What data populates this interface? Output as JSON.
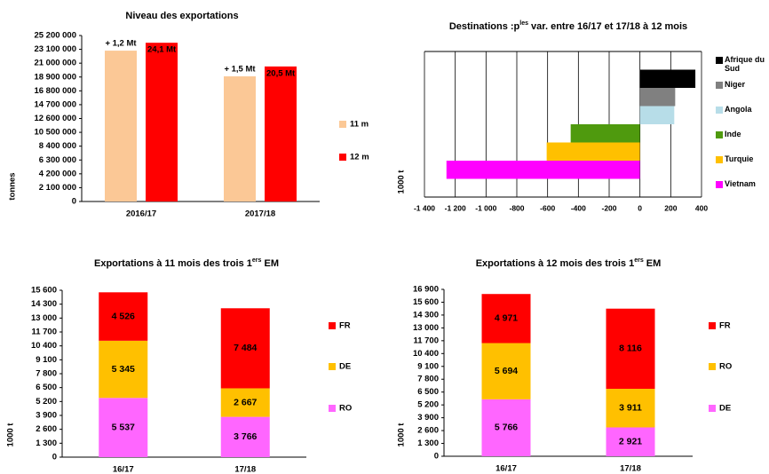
{
  "chart_data": [
    {
      "type": "bar",
      "title": [
        "Niveau des exportations"
      ],
      "ylabel": "tonnes",
      "categories": [
        "2016/17",
        "2017/18"
      ],
      "series": [
        {
          "name": "11 m",
          "color": "#fbc896",
          "values": [
            22900000,
            19000000
          ]
        },
        {
          "name": "12 m",
          "color": "#ff0000",
          "values": [
            24100000,
            20500000
          ],
          "value_labels": [
            "24,1 Mt",
            "20,5 Mt"
          ]
        }
      ],
      "annotations": [
        "+ 1,2 Mt",
        "+ 1,5 Mt"
      ],
      "ylim": [
        0,
        25200000
      ],
      "yticks": [
        0,
        {
          "value": 2100000,
          "label": "2 100 000"
        },
        {
          "value": 4200000,
          "label": "4 200 000"
        },
        {
          "value": 6300000,
          "label": "6 300 000"
        },
        {
          "value": 8400000,
          "label": "8 400 000"
        },
        {
          "value": 10500000,
          "label": "10 500 000"
        },
        {
          "value": 12600000,
          "label": "12 600 000"
        },
        {
          "value": 14700000,
          "label": "14 700 000"
        },
        {
          "value": 16800000,
          "label": "16 800 000"
        },
        {
          "value": 18900000,
          "label": "18 900 000"
        },
        {
          "value": 21000000,
          "label": "21 000 000"
        },
        {
          "value": 23100000,
          "label": "23 100 000"
        },
        {
          "value": 25200000,
          "label": "25 200 000"
        }
      ],
      "grid": false
    },
    {
      "type": "barh",
      "title": [
        "Destinations :p",
        "les",
        " var. entre 16/17 et 17/18 à 12 mois"
      ],
      "ylabel": "1000 t",
      "categories": [
        "Afrique du Sud",
        "Niger",
        "Angola",
        "Inde",
        "Turquie",
        "Vietnam"
      ],
      "values": [
        360,
        229,
        223,
        -450,
        -606,
        -1257
      ],
      "colors": [
        "#000000",
        "#808080",
        "#b7dde8",
        "#4f9a0e",
        "#ffc000",
        "#ff00ff"
      ],
      "xlim": [
        -1400,
        400
      ],
      "xticks": [
        {
          "value": -1400,
          "label": "-1 400"
        },
        {
          "value": -1200,
          "label": "-1 200"
        },
        {
          "value": -1000,
          "label": "-1 000"
        },
        -800,
        -600,
        -400,
        -200,
        0,
        200,
        400
      ],
      "grid": true
    },
    {
      "type": "stacked",
      "title": [
        "Exportations à 11 mois des trois 1",
        "ers",
        " EM"
      ],
      "ylabel": "1000 t",
      "categories": [
        "16/17",
        "17/18"
      ],
      "series": [
        {
          "name": "RO",
          "color": "#ff66ff",
          "values": [
            5537,
            3766
          ],
          "value_labels": [
            "5 537",
            "3 766"
          ]
        },
        {
          "name": "DE",
          "color": "#ffc000",
          "values": [
            5345,
            2667
          ],
          "value_labels": [
            "5 345",
            "2 667"
          ]
        },
        {
          "name": "FR",
          "color": "#ff0000",
          "values": [
            4526,
            7484
          ],
          "value_labels": [
            "4 526",
            "7 484"
          ]
        }
      ],
      "ylim": [
        0,
        15600
      ],
      "yticks": [
        0,
        {
          "value": 1300,
          "label": "1 300"
        },
        {
          "value": 2600,
          "label": "2 600"
        },
        {
          "value": 3900,
          "label": "3 900"
        },
        {
          "value": 5200,
          "label": "5 200"
        },
        {
          "value": 6500,
          "label": "6 500"
        },
        {
          "value": 7800,
          "label": "7 800"
        },
        {
          "value": 9100,
          "label": "9 100"
        },
        {
          "value": 10400,
          "label": "10 400"
        },
        {
          "value": 11700,
          "label": "11 700"
        },
        {
          "value": 13000,
          "label": "13 000"
        },
        {
          "value": 14300,
          "label": "14 300"
        },
        {
          "value": 15600,
          "label": "15 600"
        }
      ],
      "grid": false
    },
    {
      "type": "stacked",
      "title": [
        "Exportations à 12 mois des trois 1",
        "ers",
        " EM"
      ],
      "ylabel": "1000 t",
      "categories": [
        "16/17",
        "17/18"
      ],
      "series": [
        {
          "name": "DE",
          "color": "#ff66ff",
          "values": [
            5766,
            2921
          ],
          "value_labels": [
            "5 766",
            "2 921"
          ]
        },
        {
          "name": "RO",
          "color": "#ffc000",
          "values": [
            5694,
            3911
          ],
          "value_labels": [
            "5 694",
            "3 911"
          ]
        },
        {
          "name": "FR",
          "color": "#ff0000",
          "values": [
            4971,
            8116
          ],
          "value_labels": [
            "4 971",
            "8 116"
          ]
        }
      ],
      "ylim": [
        0,
        16900
      ],
      "yticks": [
        0,
        {
          "value": 1300,
          "label": "1 300"
        },
        {
          "value": 2600,
          "label": "2 600"
        },
        {
          "value": 3900,
          "label": "3 900"
        },
        {
          "value": 5200,
          "label": "5 200"
        },
        {
          "value": 6500,
          "label": "6 500"
        },
        {
          "value": 7800,
          "label": "7 800"
        },
        {
          "value": 9100,
          "label": "9 100"
        },
        {
          "value": 10400,
          "label": "10 400"
        },
        {
          "value": 11700,
          "label": "11 700"
        },
        {
          "value": 13000,
          "label": "13 000"
        },
        {
          "value": 14300,
          "label": "14 300"
        },
        {
          "value": 15600,
          "label": "15 600"
        },
        {
          "value": 16900,
          "label": "16 900"
        }
      ],
      "grid": false
    }
  ]
}
